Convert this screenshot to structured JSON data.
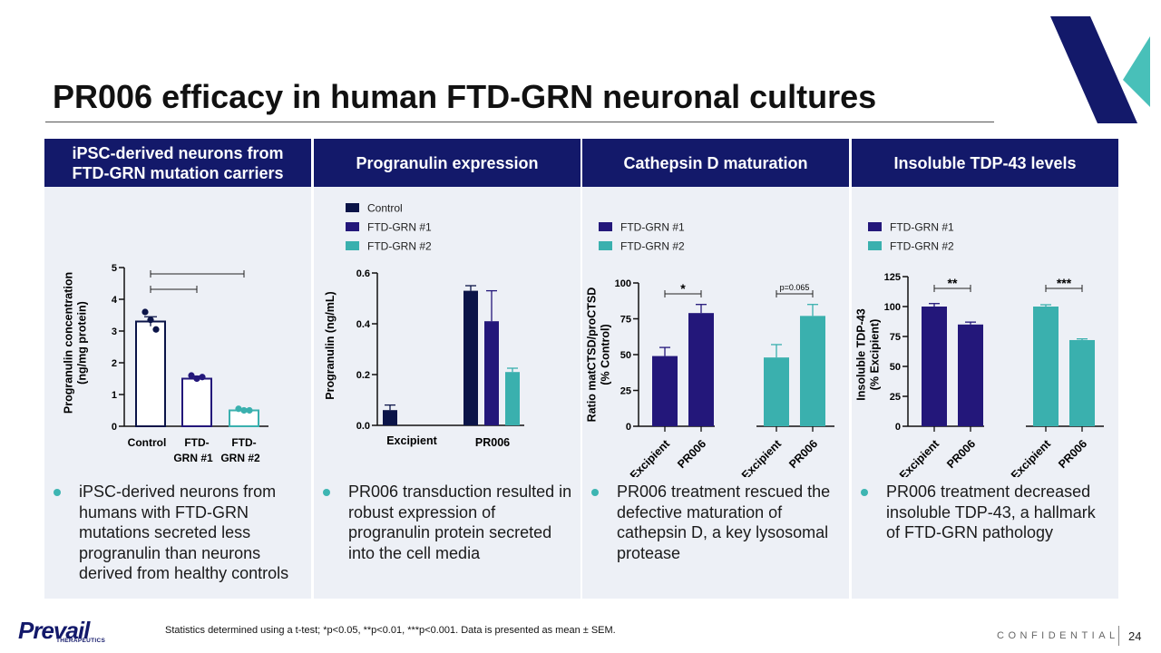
{
  "title": "PR006 efficacy in human FTD-GRN neuronal cultures",
  "colors": {
    "navy": "#13196a",
    "control": "#0b1448",
    "grn1": "#23177a",
    "grn2": "#3ab0ae",
    "teal_accent": "#48c0b9",
    "panel_bg": "#edf0f6"
  },
  "panels": [
    {
      "header": "iPSC-derived neurons from FTD-GRN mutation carriers",
      "bullet": "iPSC-derived neurons from humans with FTD-GRN mutations secreted less progranulin than neurons derived from healthy controls"
    },
    {
      "header": "Progranulin expression",
      "bullet": "PR006 transduction resulted in robust expression of progranulin protein secreted into the cell media"
    },
    {
      "header": "Cathepsin D maturation",
      "bullet": "PR006 treatment rescued the defective maturation of cathepsin D, a key lysosomal protease"
    },
    {
      "header": "Insoluble TDP-43 levels",
      "bullet": "PR006 treatment decreased insoluble TDP-43, a hallmark of FTD-GRN pathology"
    }
  ],
  "chart_data": [
    {
      "type": "bar",
      "title": "",
      "categories": [
        "Control",
        "FTD-GRN #1",
        "FTD-GRN #2"
      ],
      "category_lines": [
        [
          "Control"
        ],
        [
          "FTD-",
          "GRN #1"
        ],
        [
          "FTD-",
          "GRN #2"
        ]
      ],
      "values": [
        3.3,
        1.5,
        0.5
      ],
      "errors": [
        0.15,
        0.08,
        0.05
      ],
      "points": [
        [
          3.6,
          3.35,
          3.05
        ],
        [
          1.6,
          1.5,
          1.55
        ],
        [
          0.55,
          0.5,
          0.5
        ]
      ],
      "ylabel_lines": [
        "Progranulin concentration",
        "(ng/mg protein)"
      ],
      "ylim": [
        0,
        5
      ],
      "yticks": [
        "0",
        "1",
        "2",
        "3",
        "4",
        "5"
      ],
      "brackets": [
        {
          "from": 0,
          "to": 2,
          "label": ""
        },
        {
          "from": 0,
          "to": 1,
          "label": ""
        }
      ]
    },
    {
      "type": "bar",
      "groups": [
        "Excipient",
        "PR006"
      ],
      "legend": [
        "Control",
        "FTD-GRN #1",
        "FTD-GRN #2"
      ],
      "series": [
        {
          "name": "Control",
          "values": [
            0.06,
            0.53
          ],
          "errors": [
            0.02,
            0.02
          ]
        },
        {
          "name": "FTD-GRN #1",
          "values": [
            0.0,
            0.41
          ],
          "errors": [
            0.0,
            0.12
          ]
        },
        {
          "name": "FTD-GRN #2",
          "values": [
            0.0,
            0.21
          ],
          "errors": [
            0.0,
            0.015
          ]
        }
      ],
      "ylabel": "Progranulin (ng/mL)",
      "ylim": [
        0,
        0.6
      ],
      "yticks": [
        "0.0",
        "0.2",
        "0.4",
        "0.6"
      ]
    },
    {
      "type": "bar",
      "legend": [
        "FTD-GRN #1",
        "FTD-GRN #2"
      ],
      "categories": [
        "Excipient",
        "PR006",
        "Excipient",
        "PR006"
      ],
      "series_index": [
        0,
        0,
        1,
        1
      ],
      "values": [
        49,
        79,
        48,
        77
      ],
      "errors": [
        6,
        6,
        9,
        8
      ],
      "ylabel_lines": [
        "Ratio matCTSD/proCTSD",
        "(% Control)"
      ],
      "ylim": [
        0,
        100
      ],
      "yticks": [
        "0",
        "25",
        "50",
        "75",
        "100"
      ],
      "brackets": [
        {
          "from": 0,
          "to": 1,
          "label": "*"
        },
        {
          "from": 2,
          "to": 3,
          "label": "p=0.065"
        }
      ]
    },
    {
      "type": "bar",
      "legend": [
        "FTD-GRN #1",
        "FTD-GRN #2"
      ],
      "categories": [
        "Excipient",
        "PR006",
        "Excipient",
        "PR006"
      ],
      "series_index": [
        0,
        0,
        1,
        1
      ],
      "values": [
        100,
        85,
        100,
        72
      ],
      "errors": [
        2.5,
        2,
        1.5,
        1
      ],
      "ylabel_lines": [
        "Insoluble TDP-43",
        "(% Excipient)"
      ],
      "ylim": [
        0,
        125
      ],
      "yticks": [
        "0",
        "25",
        "50",
        "75",
        "100",
        "125"
      ],
      "brackets": [
        {
          "from": 0,
          "to": 1,
          "label": "**"
        },
        {
          "from": 2,
          "to": 3,
          "label": "***"
        }
      ]
    }
  ],
  "footnote": "Statistics determined using a t-test; *p<0.05, **p<0.01, ***p<0.001. Data is presented as mean ± SEM.",
  "footer": {
    "confidential": "CONFIDENTIAL",
    "page_number": "24",
    "logo_main": "Prevail",
    "logo_sub": "THERAPEUTICS"
  }
}
